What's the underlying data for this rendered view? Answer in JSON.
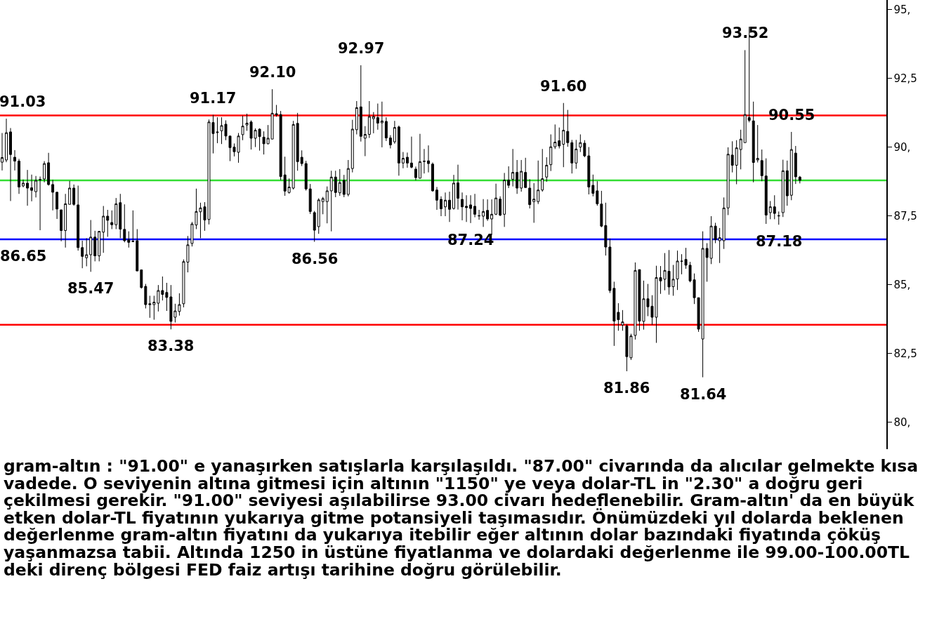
{
  "chart_data": {
    "type": "candlestick",
    "categories": [
      null,
      null,
      null,
      null,
      null,
      null,
      null,
      null,
      null,
      null,
      null,
      null,
      null,
      null,
      null,
      null,
      null,
      null,
      null,
      null,
      null,
      null,
      null,
      null,
      null,
      null,
      null,
      null,
      null,
      null,
      null,
      null,
      null,
      null,
      null,
      null,
      null,
      null,
      null,
      null,
      null,
      null,
      null,
      null,
      null,
      null,
      null,
      null,
      null,
      null,
      null,
      null,
      null,
      null,
      null,
      null,
      null,
      null,
      null,
      null,
      null,
      null,
      null,
      null,
      null,
      null,
      null,
      null,
      null,
      null,
      null,
      null,
      null,
      null,
      null,
      null,
      null,
      null,
      null,
      null,
      null,
      null,
      null,
      null,
      null,
      null,
      null,
      null,
      null,
      null,
      null,
      null,
      null,
      null,
      null,
      null,
      null,
      null,
      null,
      null,
      null,
      null,
      null,
      null,
      null,
      null,
      null,
      null,
      null,
      null,
      null,
      null,
      null,
      null,
      null,
      null,
      null,
      null,
      null,
      null,
      null,
      null,
      null,
      null,
      null,
      null,
      null,
      null,
      null,
      null,
      null,
      null,
      null,
      null,
      null,
      null,
      null,
      null,
      null,
      null,
      null,
      null,
      null,
      null,
      null,
      null,
      null,
      null,
      null,
      null,
      null,
      null,
      null,
      null,
      null,
      null,
      null,
      null,
      null,
      null,
      null,
      null,
      null,
      null,
      null,
      null,
      null,
      null,
      null,
      null,
      null,
      null,
      null,
      null,
      null,
      null,
      null,
      null,
      null,
      null,
      null,
      null,
      null,
      null,
      null,
      null,
      null,
      null,
      null,
      null,
      null,
      null,
      null,
      null,
      null,
      null,
      null,
      null,
      null,
      null,
      null,
      null,
      null,
      null,
      null,
      null,
      null,
      null,
      null,
      null
    ],
    "ohlc": [
      [
        89.45,
        90.51,
        89.15,
        89.62
      ],
      [
        89.53,
        91.03,
        89.45,
        90.52
      ],
      [
        90.55,
        90.69,
        88.04,
        89.73
      ],
      [
        89.63,
        89.89,
        89.15,
        89.49
      ],
      [
        89.49,
        89.57,
        88.3,
        88.55
      ],
      [
        88.59,
        88.82,
        88.54,
        88.69
      ],
      [
        88.69,
        89.17,
        87.87,
        88.51
      ],
      [
        88.52,
        89.0,
        88.03,
        88.43
      ],
      [
        88.38,
        88.95,
        88.17,
        88.79
      ],
      [
        88.82,
        88.93,
        86.98,
        88.81
      ],
      [
        88.84,
        89.49,
        88.72,
        89.4
      ],
      [
        89.43,
        89.79,
        88.6,
        88.64
      ],
      [
        88.64,
        88.81,
        87.7,
        88.36
      ],
      [
        88.36,
        88.38,
        87.39,
        87.75
      ],
      [
        87.72,
        87.72,
        86.58,
        86.97
      ],
      [
        86.97,
        88.3,
        86.35,
        87.94
      ],
      [
        87.92,
        88.77,
        87.92,
        88.51
      ],
      [
        88.51,
        88.64,
        87.87,
        87.92
      ],
      [
        87.9,
        88.6,
        86.24,
        86.35
      ],
      [
        86.35,
        86.6,
        85.6,
        86.03
      ],
      [
        85.98,
        86.69,
        85.67,
        86.09
      ],
      [
        86.09,
        87.35,
        85.47,
        86.73
      ],
      [
        86.73,
        86.96,
        85.85,
        86.05
      ],
      [
        86.05,
        86.94,
        85.85,
        86.94
      ],
      [
        86.91,
        87.86,
        86.16,
        87.49
      ],
      [
        87.49,
        87.72,
        86.74,
        87.34
      ],
      [
        87.26,
        87.7,
        87.02,
        87.18
      ],
      [
        87.18,
        88.15,
        87.02,
        87.94
      ],
      [
        87.98,
        88.3,
        86.69,
        87.02
      ],
      [
        87.01,
        87.92,
        86.54,
        86.6
      ],
      [
        86.63,
        86.94,
        86.35,
        86.54
      ],
      [
        86.58,
        87.7,
        86.55,
        86.57
      ],
      [
        86.6,
        87.02,
        85.5,
        85.5
      ],
      [
        85.54,
        85.54,
        84.86,
        84.9
      ],
      [
        84.94,
        85.03,
        84.14,
        84.28
      ],
      [
        84.31,
        84.6,
        83.8,
        84.28
      ],
      [
        84.28,
        84.6,
        83.73,
        84.37
      ],
      [
        84.33,
        84.99,
        84.03,
        84.79
      ],
      [
        84.79,
        85.3,
        84.43,
        84.65
      ],
      [
        84.72,
        85.07,
        84.05,
        84.54
      ],
      [
        84.56,
        84.99,
        83.38,
        83.67
      ],
      [
        83.82,
        84.31,
        83.63,
        84.05
      ],
      [
        84.03,
        84.69,
        83.88,
        84.28
      ],
      [
        84.31,
        85.92,
        84.18,
        85.84
      ],
      [
        85.82,
        86.77,
        85.45,
        86.45
      ],
      [
        86.5,
        87.28,
        86.39,
        87.21
      ],
      [
        87.17,
        88.49,
        87.02,
        87.66
      ],
      [
        87.65,
        87.98,
        86.69,
        87.79
      ],
      [
        87.83,
        88.0,
        86.96,
        87.35
      ],
      [
        87.37,
        91.0,
        87.19,
        90.91
      ],
      [
        90.89,
        91.17,
        89.77,
        90.49
      ],
      [
        90.55,
        91.08,
        90.14,
        90.53
      ],
      [
        90.59,
        91.08,
        90.11,
        90.78
      ],
      [
        90.83,
        90.97,
        90.25,
        90.4
      ],
      [
        90.4,
        90.4,
        89.49,
        89.98
      ],
      [
        90.0,
        90.13,
        89.66,
        89.83
      ],
      [
        89.81,
        90.51,
        89.43,
        90.4
      ],
      [
        90.45,
        91.14,
        90.25,
        90.76
      ],
      [
        90.8,
        91.21,
        90.59,
        90.87
      ],
      [
        90.91,
        90.97,
        89.91,
        90.32
      ],
      [
        90.32,
        90.68,
        90.0,
        90.61
      ],
      [
        90.65,
        90.68,
        89.87,
        90.38
      ],
      [
        90.36,
        90.57,
        89.73,
        90.12
      ],
      [
        90.12,
        90.8,
        90.1,
        90.32
      ],
      [
        90.29,
        92.1,
        90.29,
        91.23
      ],
      [
        91.17,
        91.53,
        91.1,
        91.21
      ],
      [
        91.18,
        91.31,
        88.8,
        88.93
      ],
      [
        88.99,
        89.65,
        88.23,
        88.4
      ],
      [
        88.35,
        88.86,
        88.31,
        88.55
      ],
      [
        88.51,
        90.95,
        88.46,
        90.82
      ],
      [
        90.86,
        91.24,
        89.14,
        89.47
      ],
      [
        89.63,
        89.88,
        89.31,
        89.4
      ],
      [
        89.4,
        89.5,
        88.42,
        88.48
      ],
      [
        88.48,
        88.66,
        87.57,
        87.66
      ],
      [
        87.62,
        87.68,
        86.56,
        86.98
      ],
      [
        87.11,
        88.14,
        86.85,
        88.08
      ],
      [
        88.02,
        88.19,
        87.56,
        88.13
      ],
      [
        88.02,
        88.57,
        87.23,
        88.41
      ],
      [
        88.41,
        89.14,
        86.94,
        88.91
      ],
      [
        88.91,
        89.14,
        88.18,
        88.35
      ],
      [
        88.34,
        89.2,
        88.23,
        88.71
      ],
      [
        88.79,
        88.99,
        88.18,
        88.28
      ],
      [
        88.28,
        89.53,
        88.21,
        89.22
      ],
      [
        89.22,
        90.99,
        89.08,
        90.65
      ],
      [
        90.63,
        91.67,
        90.46,
        91.43
      ],
      [
        91.46,
        92.97,
        90.2,
        90.39
      ],
      [
        90.32,
        90.76,
        89.67,
        90.46
      ],
      [
        90.46,
        91.67,
        90.33,
        91.11
      ],
      [
        91.03,
        91.27,
        90.5,
        91.11
      ],
      [
        91.07,
        91.58,
        90.63,
        90.87
      ],
      [
        90.88,
        91.65,
        89.99,
        90.95
      ],
      [
        90.93,
        91.08,
        90.22,
        90.33
      ],
      [
        90.33,
        90.43,
        89.95,
        90.08
      ],
      [
        90.19,
        90.95,
        90.12,
        90.71
      ],
      [
        90.73,
        90.78,
        88.96,
        89.42
      ],
      [
        89.42,
        89.82,
        89.23,
        89.59
      ],
      [
        89.63,
        89.8,
        89.25,
        89.42
      ],
      [
        89.42,
        90.38,
        89.23,
        89.27
      ],
      [
        89.2,
        89.29,
        88.79,
        88.89
      ],
      [
        88.87,
        90.48,
        88.86,
        89.47
      ],
      [
        89.49,
        89.93,
        89.04,
        89.48
      ],
      [
        89.5,
        90.06,
        89.08,
        89.4
      ],
      [
        89.38,
        89.44,
        88.38,
        88.41
      ],
      [
        88.44,
        88.55,
        87.72,
        88.07
      ],
      [
        88.1,
        88.21,
        87.49,
        87.76
      ],
      [
        87.83,
        88.35,
        87.49,
        88.07
      ],
      [
        88.07,
        88.38,
        87.28,
        87.74
      ],
      [
        87.77,
        88.99,
        87.73,
        88.69
      ],
      [
        88.7,
        89.36,
        87.73,
        88.14
      ],
      [
        88.1,
        88.35,
        87.34,
        87.83
      ],
      [
        87.85,
        88.25,
        87.28,
        87.8
      ],
      [
        87.9,
        88.25,
        87.24,
        87.77
      ],
      [
        87.85,
        88.3,
        87.45,
        87.56
      ],
      [
        87.51,
        87.72,
        87.36,
        87.5
      ],
      [
        87.49,
        88.11,
        87.1,
        87.66
      ],
      [
        87.7,
        88.1,
        87.32,
        87.39
      ],
      [
        87.39,
        88.1,
        86.81,
        87.56
      ],
      [
        87.56,
        88.67,
        87.53,
        88.15
      ],
      [
        88.11,
        88.21,
        87.49,
        87.53
      ],
      [
        87.56,
        89.06,
        87.1,
        88.8
      ],
      [
        88.8,
        89.3,
        88.51,
        88.61
      ],
      [
        88.83,
        89.93,
        88.57,
        89.08
      ],
      [
        89.08,
        89.53,
        88.3,
        88.51
      ],
      [
        88.51,
        89.53,
        88.38,
        89.12
      ],
      [
        89.08,
        89.61,
        88.53,
        88.53
      ],
      [
        88.51,
        88.83,
        87.77,
        87.91
      ],
      [
        88.02,
        88.69,
        87.25,
        88.11
      ],
      [
        88.02,
        89.51,
        87.93,
        88.44
      ],
      [
        88.44,
        89.93,
        88.38,
        88.85
      ],
      [
        88.91,
        89.63,
        88.74,
        89.34
      ],
      [
        89.36,
        90.46,
        89.13,
        90.01
      ],
      [
        90.01,
        90.82,
        89.93,
        90.18
      ],
      [
        90.23,
        90.71,
        89.95,
        90.04
      ],
      [
        90.1,
        91.6,
        89.27,
        90.61
      ],
      [
        90.57,
        91.35,
        90.01,
        90.16
      ],
      [
        90.16,
        90.26,
        89.04,
        89.42
      ],
      [
        89.42,
        90.26,
        89.21,
        89.93
      ],
      [
        90.0,
        90.46,
        89.82,
        90.16
      ],
      [
        90.14,
        90.25,
        89.63,
        89.68
      ],
      [
        89.68,
        90.0,
        88.28,
        88.55
      ],
      [
        88.61,
        89.0,
        88.21,
        88.32
      ],
      [
        88.41,
        88.76,
        87.87,
        87.94
      ],
      [
        87.93,
        88.41,
        87.09,
        87.13
      ],
      [
        87.15,
        87.98,
        86.06,
        86.37
      ],
      [
        86.37,
        86.68,
        84.7,
        84.79
      ],
      [
        84.87,
        85.11,
        82.78,
        83.68
      ],
      [
        84.0,
        84.33,
        83.33,
        83.73
      ],
      [
        83.54,
        84.08,
        83.33,
        83.65
      ],
      [
        83.5,
        83.57,
        81.86,
        82.39
      ],
      [
        82.35,
        83.22,
        82.27,
        83.14
      ],
      [
        83.16,
        85.81,
        83.01,
        85.52
      ],
      [
        85.55,
        85.55,
        83.33,
        83.68
      ],
      [
        83.67,
        85.15,
        83.37,
        84.49
      ],
      [
        84.49,
        85.03,
        83.86,
        84.2
      ],
      [
        84.22,
        84.62,
        83.54,
        83.82
      ],
      [
        83.82,
        85.69,
        82.89,
        85.26
      ],
      [
        85.26,
        85.68,
        84.67,
        85.14
      ],
      [
        85.2,
        86.15,
        84.8,
        85.52
      ],
      [
        85.49,
        86.26,
        84.64,
        84.92
      ],
      [
        84.93,
        85.72,
        84.6,
        85.2
      ],
      [
        85.21,
        86.24,
        84.81,
        85.86
      ],
      [
        85.86,
        86.11,
        85.38,
        85.85
      ],
      [
        85.92,
        86.34,
        85.58,
        85.71
      ],
      [
        85.71,
        85.83,
        85.09,
        85.14
      ],
      [
        85.18,
        85.41,
        84.3,
        84.53
      ],
      [
        84.53,
        84.53,
        83.29,
        83.39
      ],
      [
        83.03,
        86.94,
        81.64,
        86.32
      ],
      [
        86.32,
        86.51,
        85.11,
        85.99
      ],
      [
        85.96,
        87.49,
        85.75,
        87.13
      ],
      [
        87.13,
        87.25,
        86.51,
        86.64
      ],
      [
        86.6,
        87.06,
        85.79,
        86.71
      ],
      [
        86.6,
        88.17,
        86.3,
        87.79
      ],
      [
        87.79,
        89.99,
        87.53,
        89.74
      ],
      [
        89.71,
        90.21,
        89.08,
        89.34
      ],
      [
        89.34,
        90.25,
        88.65,
        89.97
      ],
      [
        89.91,
        90.63,
        89.19,
        90.29
      ],
      [
        90.16,
        93.52,
        90.16,
        91.18
      ],
      [
        91.07,
        94.37,
        90.9,
        90.97
      ],
      [
        90.95,
        91.65,
        88.72,
        89.44
      ],
      [
        89.53,
        90.8,
        89.44,
        89.59
      ],
      [
        89.51,
        89.91,
        88.76,
        88.96
      ],
      [
        88.95,
        89.59,
        87.21,
        87.53
      ],
      [
        87.62,
        88.04,
        87.38,
        87.83
      ],
      [
        87.83,
        88.25,
        87.38,
        87.59
      ],
      [
        87.51,
        87.66,
        87.18,
        87.5
      ],
      [
        87.62,
        89.54,
        87.46,
        89.14
      ],
      [
        89.14,
        89.51,
        87.87,
        88.23
      ],
      [
        88.25,
        90.55,
        88.07,
        89.91
      ],
      [
        89.78,
        90.04,
        88.66,
        88.92
      ],
      [
        88.91,
        88.95,
        88.68,
        88.79
      ],
      null,
      null,
      null,
      null,
      null,
      null,
      null,
      null,
      null,
      null,
      null,
      null,
      null,
      null,
      null,
      null,
      null,
      null,
      null,
      null
    ],
    "ylim": [
      79.03,
      95.34
    ],
    "yticks": [
      {
        "value": 80,
        "label": "80,"
      },
      {
        "value": 82.5,
        "label": "82,5"
      },
      {
        "value": 85,
        "label": "85,"
      },
      {
        "value": 87.5,
        "label": "87,5"
      },
      {
        "value": 90,
        "label": "90,"
      },
      {
        "value": 92.5,
        "label": "92,5"
      },
      {
        "value": 95,
        "label": "95,"
      }
    ],
    "tick_labels": "y",
    "grid": false,
    "legend": false,
    "ref_lines": [
      {
        "axis": "y",
        "value": 91.15,
        "color": "#ff0000"
      },
      {
        "axis": "y",
        "value": 86.65,
        "label": "86.65",
        "color": "#0000ff"
      },
      {
        "axis": "y",
        "value": 83.55,
        "color": "#ff0000"
      },
      {
        "axis": "y",
        "value": 88.79,
        "color": "#33dd33"
      }
    ],
    "annotations": [
      {
        "text": "91.03",
        "y": 91.03
      },
      {
        "text": "85.47",
        "y": 85.47
      },
      {
        "text": "83.38",
        "y": 83.38
      },
      {
        "text": "91.17",
        "y": 91.17
      },
      {
        "text": "92.10",
        "y": 92.1
      },
      {
        "text": "86.56",
        "y": 86.56
      },
      {
        "text": "92.97",
        "y": 92.97
      },
      {
        "text": "87.24",
        "y": 87.24
      },
      {
        "text": "91.60",
        "y": 91.6
      },
      {
        "text": "81.86",
        "y": 81.86
      },
      {
        "text": "81.64",
        "y": 81.64
      },
      {
        "text": "93.52",
        "y": 93.52
      },
      {
        "text": "87.18",
        "y": 87.18
      },
      {
        "text": "90.55",
        "y": 90.55
      },
      "gram-altın : \"91.00\" e yanaşırken satışlarla karşılaşıldı. \"87.00\" civarında da alıcılar gelmekte kısa vadede. O seviyenin altına gitmesi için altının \"1150\" ye veya dolar-TL in \"2.30\" a doğru geri çekilmesi gerekir. \"91.00\" seviyesi aşılabilirse 93.00 civarı hedeflenebilir. Gram-altın' da en büyük etken dolar-TL fiyatının yukarıya gitme potansiyeli taşımasıdır. Önümüzdeki yıl dolarda beklenen değerlenme gram-altın fiyatını da yukarıya itebilir eğer altının dolar bazındaki fiyatında çöküş yaşanmazsa tabii. Altında 1250 in üstüne fiyatlanma ve dolardaki değerlenme ile 99.00-100.00TL deki direnç bölgesi FED faiz artışı tarihine doğru görülebilir."
    ]
  }
}
